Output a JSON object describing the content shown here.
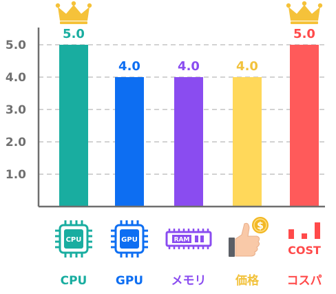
{
  "chart_data": {
    "type": "bar",
    "categories": [
      "CPU",
      "GPU",
      "メモリ",
      "価格",
      "コスパ"
    ],
    "values": [
      5.0,
      4.0,
      4.0,
      4.0,
      5.0
    ],
    "value_labels": [
      "5.0",
      "4.0",
      "4.0",
      "4.0",
      "5.0"
    ],
    "colors": [
      "#19ada0",
      "#0d6ef2",
      "#8a4cf0",
      "#ffd85a",
      "#ff5a5a"
    ],
    "value_label_colors": [
      "#19ada0",
      "#0d6ef2",
      "#8a4cf0",
      "#f2c23c",
      "#ff4a4a"
    ],
    "top_marker_categories": [
      "CPU",
      "コスパ"
    ],
    "yticks": [
      "1.0",
      "2.0",
      "3.0",
      "4.0",
      "5.0"
    ],
    "ylim": [
      0,
      5.5
    ],
    "grid": true,
    "title": "",
    "xlabel": "",
    "ylabel": ""
  },
  "icons": [
    {
      "name": "cpu-chip-icon",
      "text": "CPU",
      "color": "#19ada0"
    },
    {
      "name": "gpu-chip-icon",
      "text": "GPU",
      "color": "#0d6ef2"
    },
    {
      "name": "ram-module-icon",
      "text": "RAM",
      "color": "#8a4cf0"
    },
    {
      "name": "thumbs-up-coin-icon",
      "text": "$",
      "color": "#f2b824"
    },
    {
      "name": "cost-bars-icon",
      "text": "COST",
      "color": "#ff4a4a"
    }
  ],
  "crown_color": "#f5c23a"
}
